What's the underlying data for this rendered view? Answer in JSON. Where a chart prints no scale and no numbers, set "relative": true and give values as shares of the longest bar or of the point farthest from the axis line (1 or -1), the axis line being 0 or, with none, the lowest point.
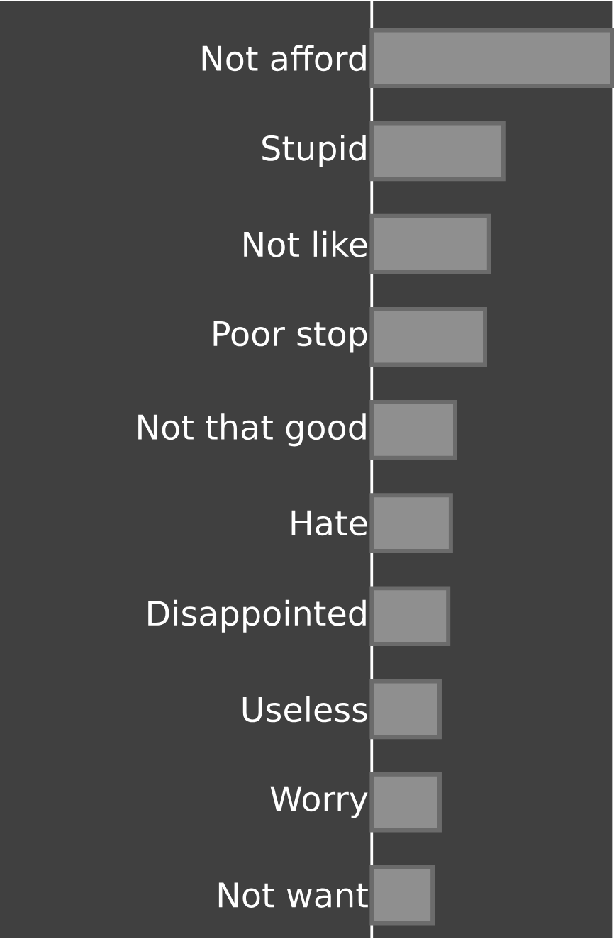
{
  "chart_data": {
    "type": "bar",
    "orientation": "horizontal",
    "relative": true,
    "categories": [
      "Not afford",
      "Stupid",
      "Not like",
      "Poor stop",
      "Not that good",
      "Hate",
      "Disappointed",
      "Useless",
      "Worry",
      "Not want"
    ],
    "values": [
      1,
      0.547,
      0.488,
      0.471,
      0.347,
      0.329,
      0.318,
      0.282,
      0.282,
      0.253
    ],
    "color": "#8f8f8f"
  }
}
